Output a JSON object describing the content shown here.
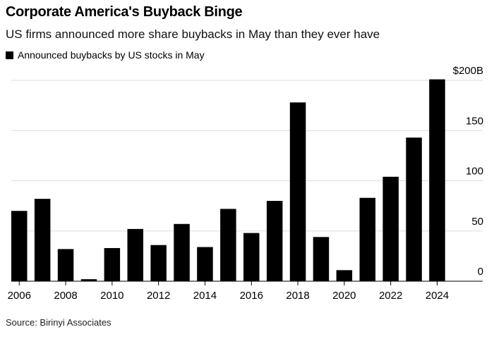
{
  "chart_data": {
    "type": "bar",
    "title": "Corporate America's Buyback Binge",
    "subtitle": "US firms announced more share buybacks in May than they ever have",
    "legend": [
      {
        "name": "Announced buybacks by US stocks in May",
        "color": "#000000"
      }
    ],
    "legend_placement": "top-left",
    "categories": [
      "2006",
      "2007",
      "2008",
      "2009",
      "2010",
      "2011",
      "2012",
      "2013",
      "2014",
      "2015",
      "2016",
      "2017",
      "2018",
      "2019",
      "2020",
      "2021",
      "2022",
      "2023",
      "2024"
    ],
    "series": [
      {
        "name": "Announced buybacks by US stocks in May",
        "values": [
          70,
          82,
          32,
          2,
          33,
          52,
          36,
          57,
          34,
          72,
          48,
          80,
          178,
          44,
          11,
          83,
          104,
          143,
          201
        ]
      }
    ],
    "x_tick_labels": [
      "2006",
      "2008",
      "2010",
      "2012",
      "2014",
      "2016",
      "2018",
      "2020",
      "2022",
      "2024"
    ],
    "y_tick_labels": [
      "0",
      "50",
      "100",
      "150",
      "$200B"
    ],
    "y_ticks": [
      0,
      50,
      100,
      150,
      200
    ],
    "ylim": [
      0,
      200
    ],
    "y_axis_side": "right",
    "grid": true,
    "source": "Source: Birinyi Associates"
  }
}
